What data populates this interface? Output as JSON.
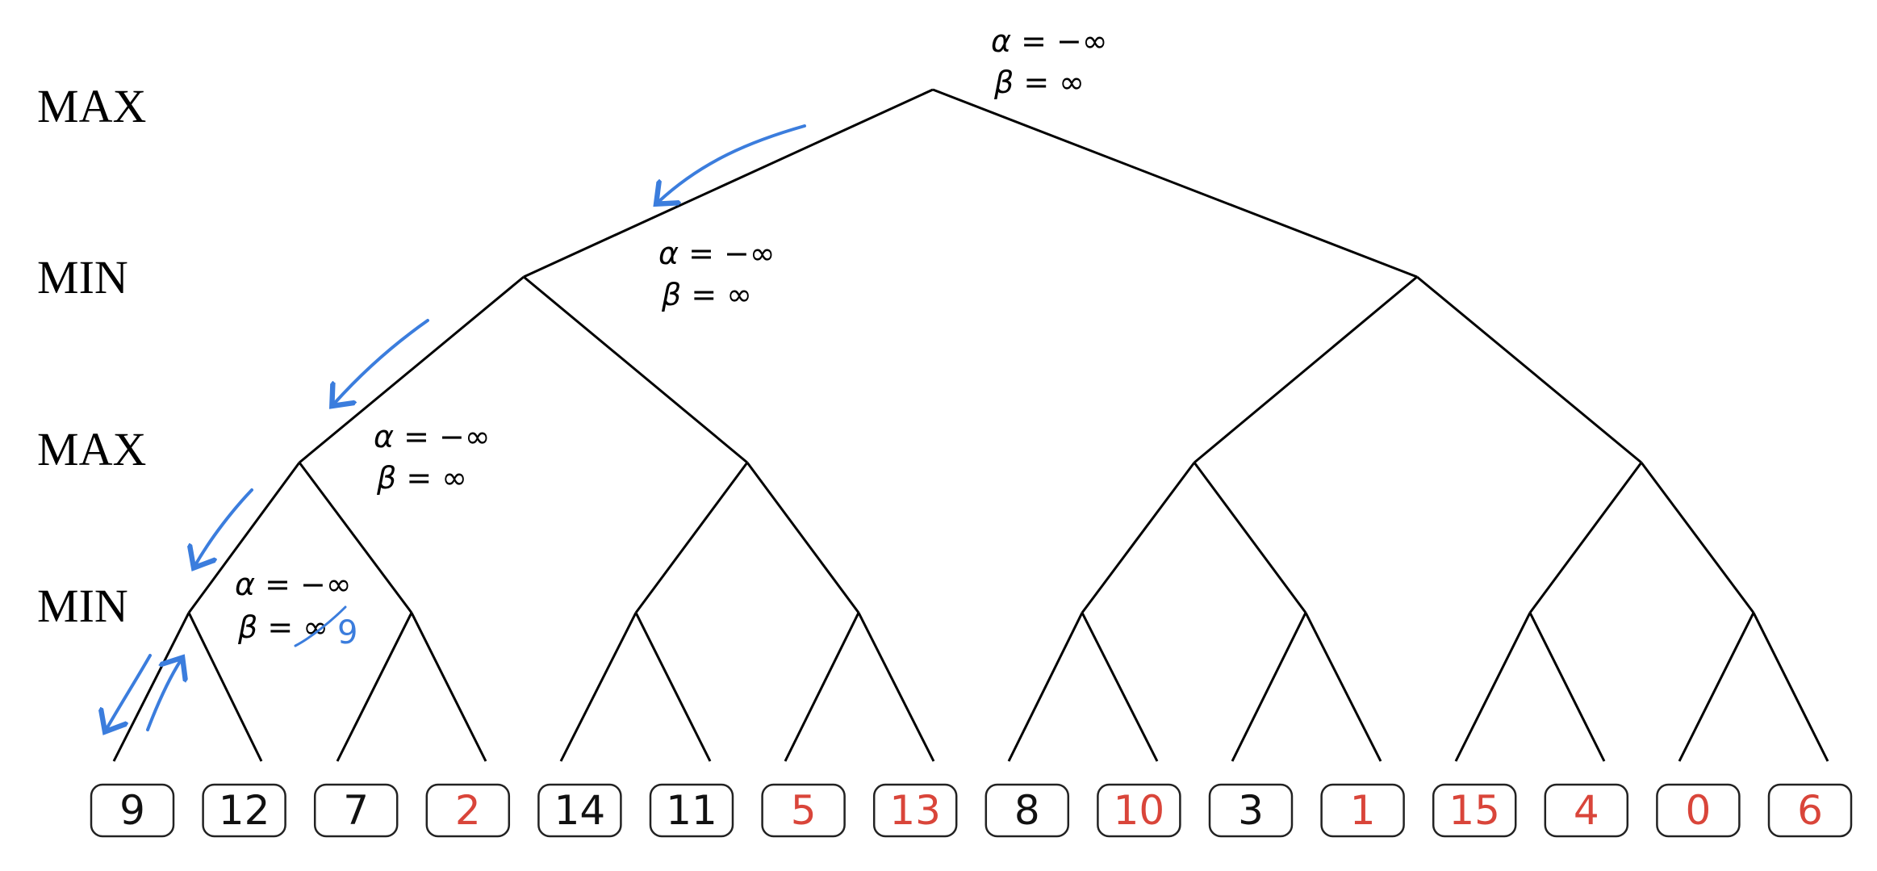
{
  "levels": [
    {
      "label": "MAX"
    },
    {
      "label": "MIN"
    },
    {
      "label": "MAX"
    },
    {
      "label": "MIN"
    }
  ],
  "leaves": [
    {
      "value": "9",
      "color": "#111111"
    },
    {
      "value": "12",
      "color": "#111111"
    },
    {
      "value": "7",
      "color": "#111111"
    },
    {
      "value": "2",
      "color": "#d9453a"
    },
    {
      "value": "14",
      "color": "#111111"
    },
    {
      "value": "11",
      "color": "#111111"
    },
    {
      "value": "5",
      "color": "#d9453a"
    },
    {
      "value": "13",
      "color": "#d9453a"
    },
    {
      "value": "8",
      "color": "#111111"
    },
    {
      "value": "10",
      "color": "#d9453a"
    },
    {
      "value": "3",
      "color": "#111111"
    },
    {
      "value": "1",
      "color": "#d9453a"
    },
    {
      "value": "15",
      "color": "#d9453a"
    },
    {
      "value": "4",
      "color": "#d9453a"
    },
    {
      "value": "0",
      "color": "#d9453a"
    },
    {
      "value": "6",
      "color": "#d9453a"
    }
  ],
  "annotations": [
    {
      "alpha": "α = −∞",
      "beta": "β = ∞"
    },
    {
      "alpha": "α = −∞",
      "beta": "β = ∞"
    },
    {
      "alpha": "α = −∞",
      "beta": "β = ∞"
    },
    {
      "alpha": "α = −∞",
      "beta": "β = ∞",
      "update": "9"
    }
  ],
  "colors": {
    "edge": "#000000",
    "arrow": "#3b7ddd",
    "pruned_leaf": "#d9453a",
    "visited_leaf": "#111111"
  }
}
